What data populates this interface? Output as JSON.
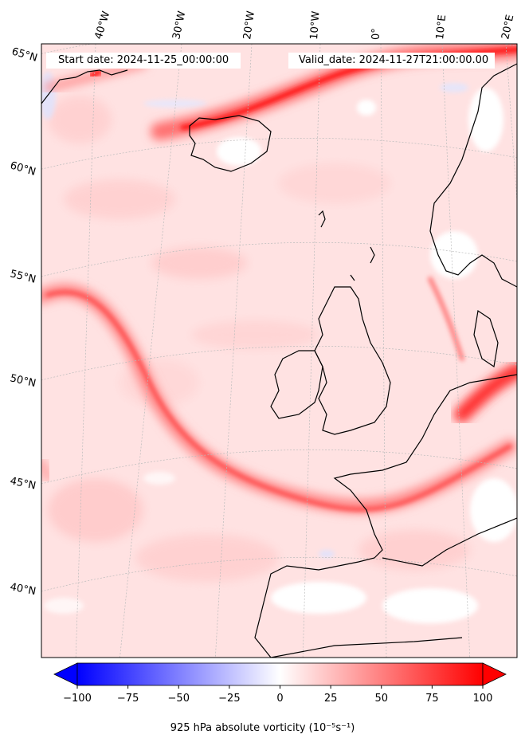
{
  "header": {
    "start_date": "Start date: 2024-11-25_00:00:00",
    "valid_date": "Valid_date: 2024-11-27T21:00:00.00"
  },
  "map": {
    "projection": "conic",
    "field": "925 hPa absolute vorticity",
    "lon_labels": [
      "40°W",
      "30°W",
      "20°W",
      "10°W",
      "0°",
      "10°E",
      "20°E"
    ],
    "lat_labels": [
      "65°N",
      "60°N",
      "55°N",
      "50°N",
      "45°N",
      "40°N"
    ]
  },
  "colorbar": {
    "label": "925 hPa absolute vorticity (10⁻⁵s⁻¹)",
    "min": -100,
    "max": 100,
    "ticks": [
      "−100",
      "−75",
      "−50",
      "−25",
      "0",
      "25",
      "50",
      "75",
      "100"
    ],
    "colormap": "bwr",
    "extend": "both",
    "low_color": "#0000ff",
    "mid_color": "#ffffff",
    "high_color": "#ff0000"
  }
}
